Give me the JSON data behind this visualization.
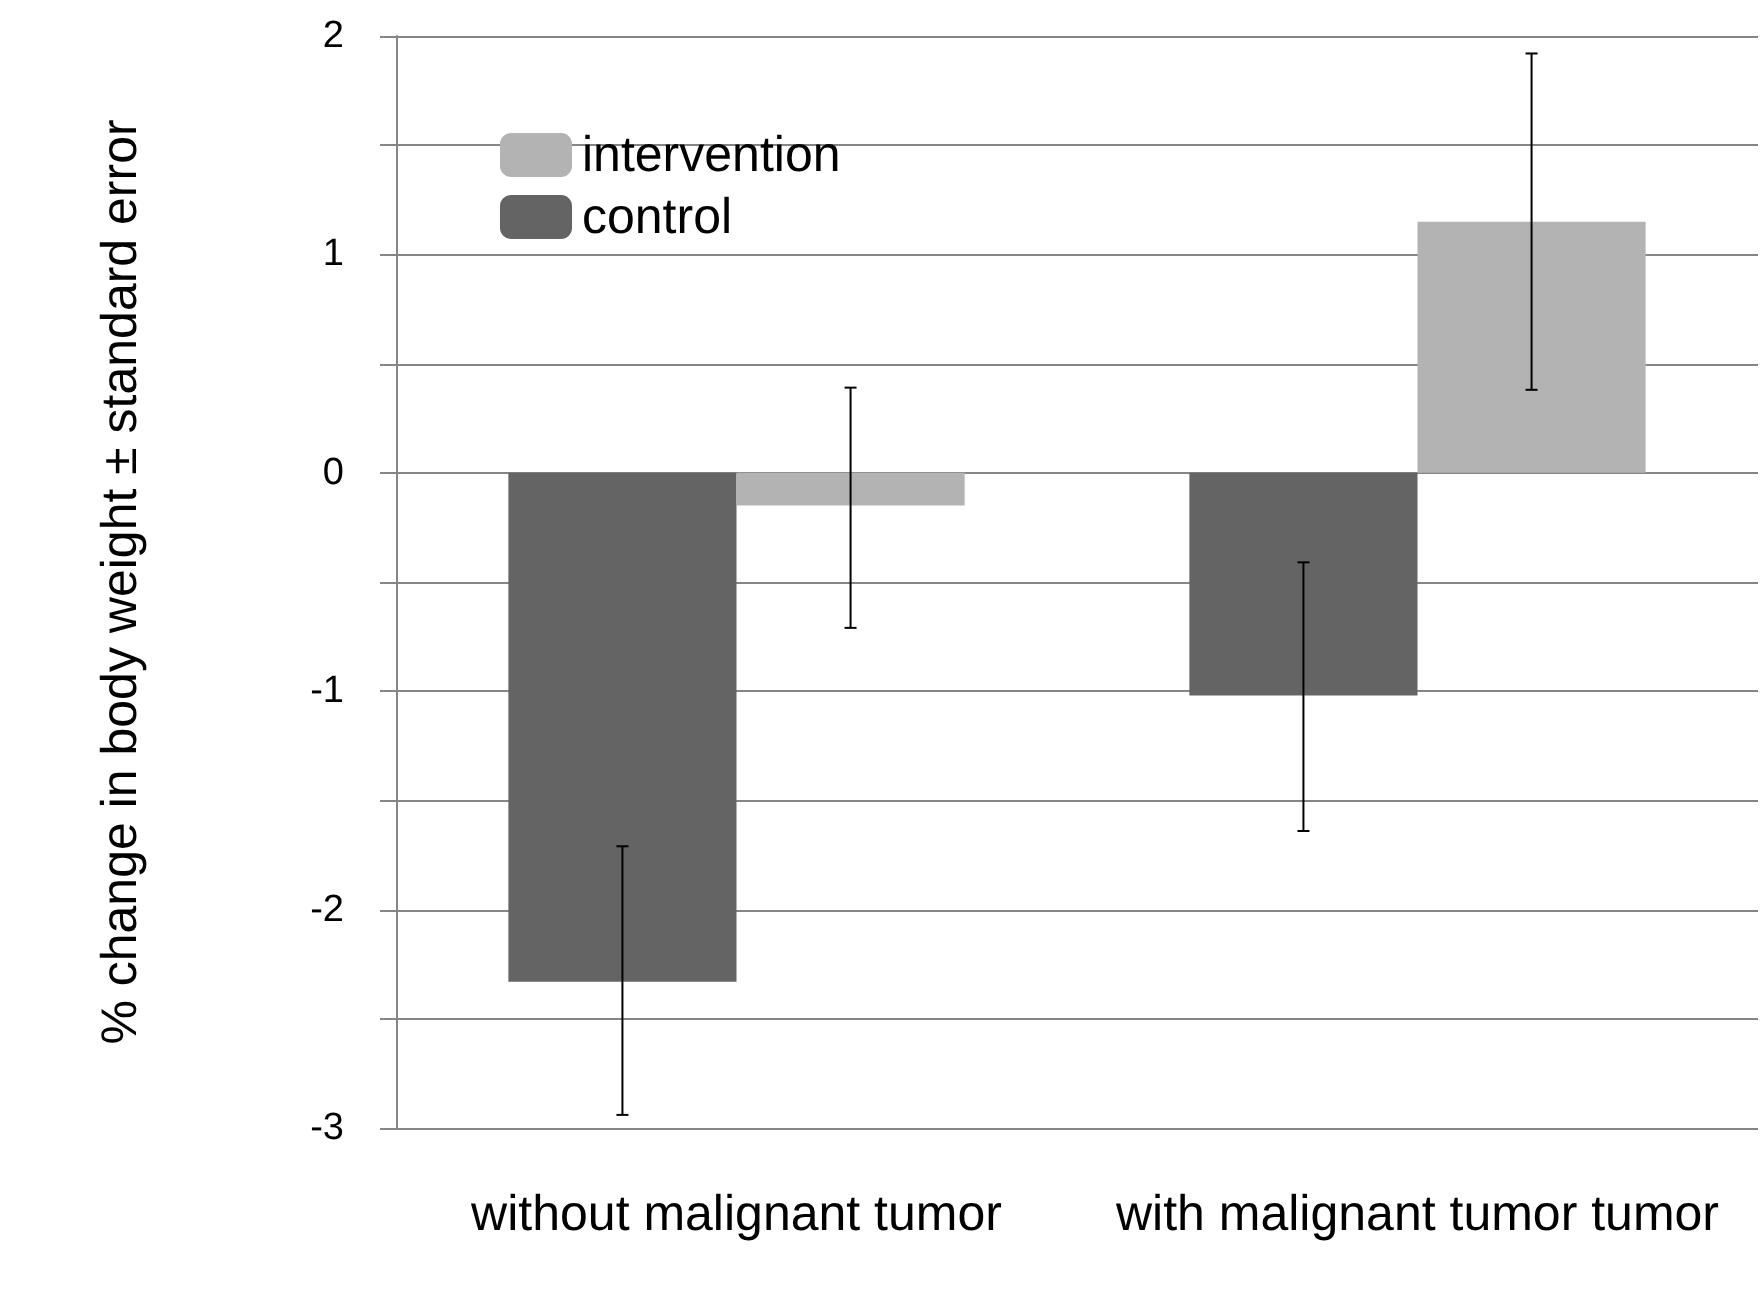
{
  "chart_data": {
    "type": "bar",
    "ylabel": "% change in body weight ± standard error",
    "categories": [
      "without malignant tumor",
      "with malignant tumor tumor"
    ],
    "series": [
      {
        "name": "control",
        "color": "#646464",
        "values": [
          -2.33,
          -1.02
        ],
        "errors": [
          [
            -2.94,
            -1.71
          ],
          [
            -1.64,
            -0.41
          ]
        ]
      },
      {
        "name": "intervention",
        "color": "#b3b3b3",
        "values": [
          -0.15,
          1.15
        ],
        "errors": [
          [
            -0.71,
            0.39
          ],
          [
            0.38,
            1.92
          ]
        ]
      }
    ],
    "ylim": [
      -3,
      2
    ],
    "yticks": [
      -3,
      {
        "value": -2.5,
        "label": null
      },
      -2,
      {
        "value": -1.5,
        "label": null
      },
      -1,
      {
        "value": -0.5,
        "label": null
      },
      0,
      {
        "value": 0.5,
        "label": null
      },
      1,
      {
        "value": 1.5,
        "label": null
      },
      2
    ],
    "grid": "y",
    "legend": "top left"
  }
}
